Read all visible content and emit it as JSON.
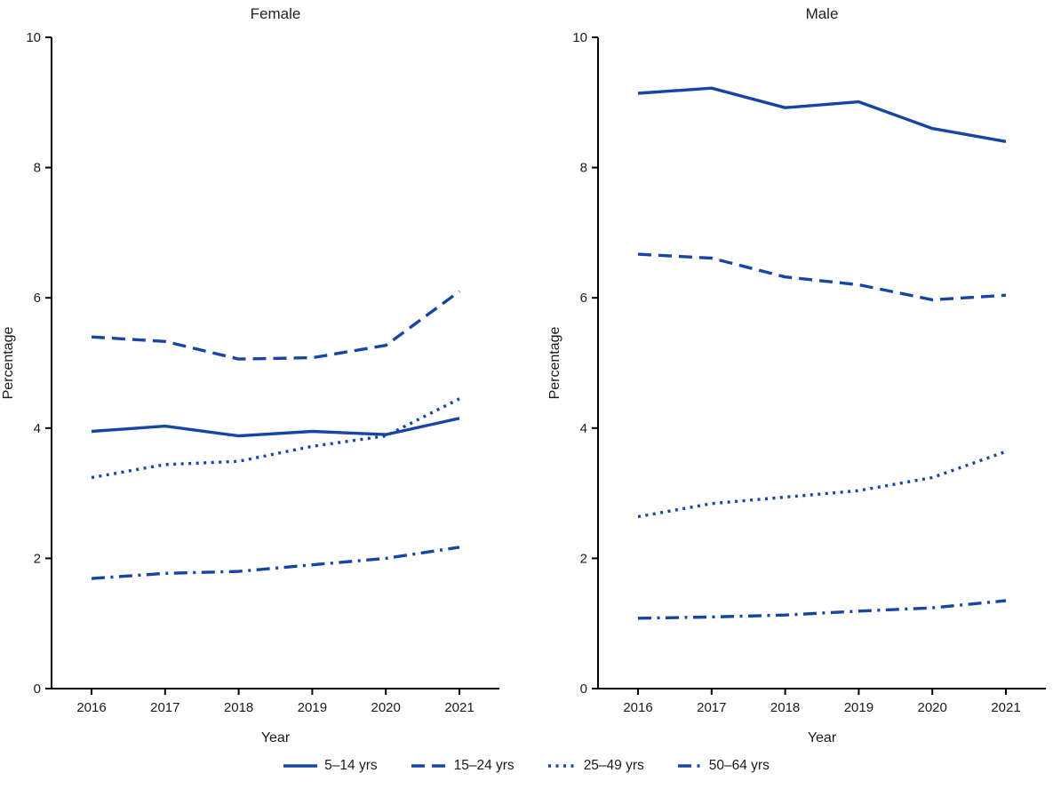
{
  "figure": {
    "background": "#ffffff"
  },
  "colors": {
    "line": "#1745a5",
    "axis": "#000000",
    "text": "#1a1a1a"
  },
  "chart_data": [
    {
      "type": "line",
      "title": "Female",
      "xlabel": "Year",
      "ylabel": "Percentage",
      "ylim": [
        0,
        10
      ],
      "yticks": [
        0,
        2,
        4,
        6,
        8,
        10
      ],
      "x": [
        2016,
        2017,
        2018,
        2019,
        2020,
        2021
      ],
      "grid": false,
      "series": [
        {
          "name": "5–14 yrs",
          "style": "solid",
          "values": [
            3.95,
            4.03,
            3.88,
            3.95,
            3.9,
            4.15
          ]
        },
        {
          "name": "15–24 yrs",
          "style": "dashed",
          "values": [
            5.4,
            5.33,
            5.06,
            5.08,
            5.27,
            6.1
          ]
        },
        {
          "name": "25–49 yrs",
          "style": "dotted",
          "values": [
            3.24,
            3.44,
            3.49,
            3.72,
            3.88,
            4.45
          ]
        },
        {
          "name": "50–64 yrs",
          "style": "dashdot",
          "values": [
            1.69,
            1.77,
            1.8,
            1.9,
            2.0,
            2.17
          ]
        }
      ]
    },
    {
      "type": "line",
      "title": "Male",
      "xlabel": "Year",
      "ylabel": "Percentage",
      "ylim": [
        0,
        10
      ],
      "yticks": [
        0,
        2,
        4,
        6,
        8,
        10
      ],
      "x": [
        2016,
        2017,
        2018,
        2019,
        2020,
        2021
      ],
      "grid": false,
      "series": [
        {
          "name": "5–14 yrs",
          "style": "solid",
          "values": [
            9.14,
            9.22,
            8.92,
            9.01,
            8.6,
            8.4
          ]
        },
        {
          "name": "15–24 yrs",
          "style": "dashed",
          "values": [
            6.67,
            6.61,
            6.32,
            6.2,
            5.97,
            6.04
          ]
        },
        {
          "name": "25–49 yrs",
          "style": "dotted",
          "values": [
            2.64,
            2.84,
            2.94,
            3.04,
            3.24,
            3.64
          ]
        },
        {
          "name": "50–64 yrs",
          "style": "dashdot",
          "values": [
            1.08,
            1.1,
            1.13,
            1.19,
            1.24,
            1.35
          ]
        }
      ]
    }
  ],
  "legend": {
    "items": [
      {
        "label": "5–14 yrs",
        "style": "solid"
      },
      {
        "label": "15–24 yrs",
        "style": "dashed"
      },
      {
        "label": "25–49 yrs",
        "style": "dotted"
      },
      {
        "label": "50–64 yrs",
        "style": "dashdot"
      }
    ]
  }
}
